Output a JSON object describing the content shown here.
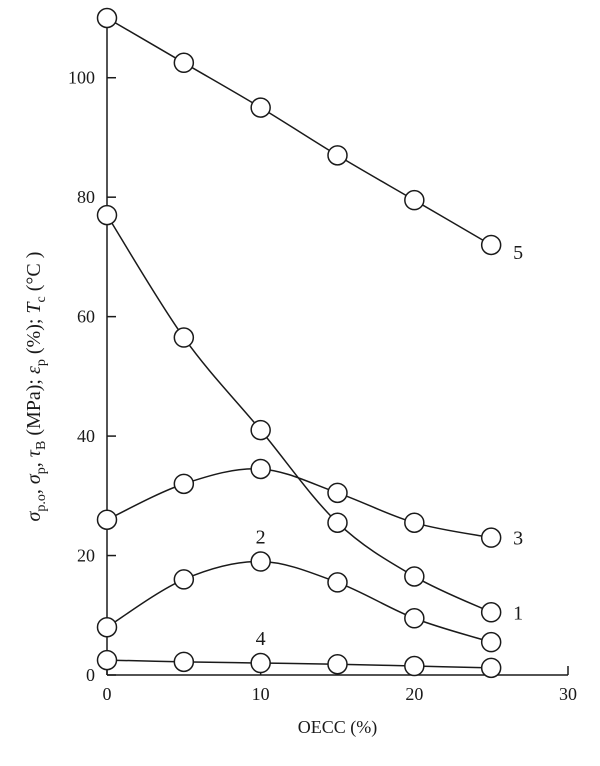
{
  "chart_data": {
    "type": "line",
    "xlabel": "OECC (%)",
    "ylabel_parts": [
      {
        "t": "σ",
        "i": true
      },
      {
        "t": "p.o",
        "sub": true
      },
      {
        "t": ", "
      },
      {
        "t": "σ",
        "i": true
      },
      {
        "t": "p",
        "sub": true
      },
      {
        "t": ", "
      },
      {
        "t": "τ",
        "i": true
      },
      {
        "t": "B",
        "sub": true
      },
      {
        "t": " (MPa); "
      },
      {
        "t": "ε",
        "i": true
      },
      {
        "t": "p",
        "sub": true
      },
      {
        "t": " (%); "
      },
      {
        "t": "T",
        "i": true
      },
      {
        "t": "c",
        "sub": true
      },
      {
        "t": " (°C )"
      }
    ],
    "xlim": [
      0,
      30
    ],
    "ylim": [
      0,
      110
    ],
    "xticks": [
      0,
      10,
      20,
      30
    ],
    "yticks": [
      0,
      20,
      40,
      60,
      80,
      100
    ],
    "grid": false,
    "marker": "open-circle",
    "line_color": "#1a1a1a",
    "series": [
      {
        "label": "1",
        "x": [
          0,
          5,
          10,
          15,
          20,
          25
        ],
        "y": [
          77,
          56.5,
          41,
          25.5,
          16.5,
          10.5
        ]
      },
      {
        "label": "2",
        "x": [
          0,
          5,
          10,
          15,
          20,
          25
        ],
        "y": [
          8,
          16,
          19,
          15.5,
          9.5,
          5.5
        ]
      },
      {
        "label": "3",
        "x": [
          0,
          5,
          10,
          15,
          20,
          25
        ],
        "y": [
          26,
          32,
          34.5,
          30.5,
          25.5,
          23
        ]
      },
      {
        "label": "4",
        "x": [
          0,
          5,
          10,
          15,
          20,
          25
        ],
        "y": [
          2.5,
          2.2,
          2,
          1.8,
          1.5,
          1.2
        ]
      },
      {
        "label": "5",
        "x": [
          0,
          5,
          10,
          15,
          20,
          25
        ],
        "y": [
          110,
          102.5,
          95,
          87,
          79.5,
          72
        ]
      }
    ]
  }
}
